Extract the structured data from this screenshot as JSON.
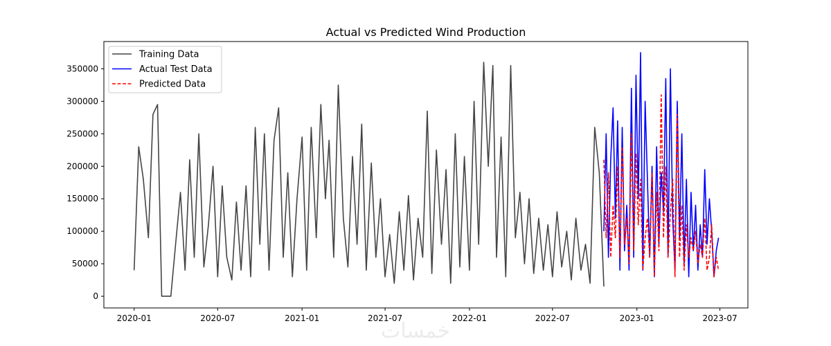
{
  "chart_data": {
    "type": "line",
    "title": "Actual vs Predicted Wind Production",
    "xlabel": "",
    "ylabel": "",
    "xlim": [
      "2019-10-27",
      "2023-08-31"
    ],
    "ylim": [
      -18000,
      392000
    ],
    "x_ticks": [
      "2020-01",
      "2020-07",
      "2021-01",
      "2021-07",
      "2022-01",
      "2022-07",
      "2023-01",
      "2023-07"
    ],
    "y_ticks": [
      0,
      50000,
      100000,
      150000,
      200000,
      250000,
      300000,
      350000
    ],
    "grid": false,
    "legend_position": "top-left",
    "series": [
      {
        "name": "Training Data",
        "color": "#444444",
        "style": "solid",
        "x": [
          "2020-01-01",
          "2020-01-11",
          "2020-01-21",
          "2020-02-01",
          "2020-02-11",
          "2020-02-21",
          "2020-03-01",
          "2020-03-11",
          "2020-03-21",
          "2020-04-01",
          "2020-04-11",
          "2020-04-21",
          "2020-05-01",
          "2020-05-11",
          "2020-05-21",
          "2020-06-01",
          "2020-06-11",
          "2020-06-21",
          "2020-07-01",
          "2020-07-11",
          "2020-07-21",
          "2020-08-01",
          "2020-08-11",
          "2020-08-21",
          "2020-09-01",
          "2020-09-11",
          "2020-09-21",
          "2020-10-01",
          "2020-10-11",
          "2020-10-21",
          "2020-11-01",
          "2020-11-11",
          "2020-11-21",
          "2020-12-01",
          "2020-12-11",
          "2020-12-21",
          "2021-01-01",
          "2021-01-11",
          "2021-01-21",
          "2021-02-01",
          "2021-02-11",
          "2021-02-21",
          "2021-03-01",
          "2021-03-11",
          "2021-03-21",
          "2021-04-01",
          "2021-04-11",
          "2021-04-21",
          "2021-05-01",
          "2021-05-11",
          "2021-05-21",
          "2021-06-01",
          "2021-06-11",
          "2021-06-21",
          "2021-07-01",
          "2021-07-11",
          "2021-07-21",
          "2021-08-01",
          "2021-08-11",
          "2021-08-21",
          "2021-09-01",
          "2021-09-11",
          "2021-09-21",
          "2021-10-01",
          "2021-10-11",
          "2021-10-21",
          "2021-11-01",
          "2021-11-11",
          "2021-11-21",
          "2021-12-01",
          "2021-12-11",
          "2021-12-21",
          "2022-01-01",
          "2022-01-11",
          "2022-01-21",
          "2022-02-01",
          "2022-02-11",
          "2022-02-21",
          "2022-03-01",
          "2022-03-11",
          "2022-03-21",
          "2022-04-01",
          "2022-04-11",
          "2022-04-21",
          "2022-05-01",
          "2022-05-11",
          "2022-05-21",
          "2022-06-01",
          "2022-06-11",
          "2022-06-21",
          "2022-07-01",
          "2022-07-11",
          "2022-07-21",
          "2022-08-01",
          "2022-08-11",
          "2022-08-21",
          "2022-09-01",
          "2022-09-11",
          "2022-09-21",
          "2022-10-01",
          "2022-10-11",
          "2022-10-21"
        ],
        "values": [
          40000,
          230000,
          180000,
          90000,
          280000,
          295000,
          0,
          0,
          0,
          85000,
          160000,
          40000,
          210000,
          60000,
          250000,
          45000,
          110000,
          200000,
          30000,
          170000,
          60000,
          25000,
          145000,
          40000,
          170000,
          30000,
          260000,
          80000,
          250000,
          40000,
          240000,
          290000,
          60000,
          190000,
          30000,
          150000,
          245000,
          40000,
          260000,
          90000,
          295000,
          150000,
          240000,
          60000,
          325000,
          120000,
          45000,
          215000,
          80000,
          265000,
          40000,
          205000,
          60000,
          150000,
          30000,
          95000,
          20000,
          130000,
          40000,
          155000,
          25000,
          120000,
          60000,
          285000,
          35000,
          225000,
          80000,
          195000,
          20000,
          250000,
          45000,
          215000,
          40000,
          300000,
          80000,
          360000,
          200000,
          355000,
          60000,
          245000,
          30000,
          355000,
          90000,
          160000,
          50000,
          150000,
          35000,
          120000,
          40000,
          110000,
          30000,
          130000,
          45000,
          100000,
          25000,
          120000,
          40000,
          80000,
          20000,
          260000,
          190000,
          15000
        ]
      },
      {
        "name": "Actual Test Data",
        "color": "#0000ff",
        "style": "solid",
        "x": [
          "2022-10-21",
          "2022-10-26",
          "2022-10-31",
          "2022-11-05",
          "2022-11-10",
          "2022-11-15",
          "2022-11-20",
          "2022-11-25",
          "2022-11-30",
          "2022-12-05",
          "2022-12-10",
          "2022-12-15",
          "2022-12-20",
          "2022-12-25",
          "2022-12-30",
          "2023-01-04",
          "2023-01-09",
          "2023-01-14",
          "2023-01-19",
          "2023-01-24",
          "2023-01-29",
          "2023-02-03",
          "2023-02-08",
          "2023-02-13",
          "2023-02-18",
          "2023-02-23",
          "2023-02-28",
          "2023-03-05",
          "2023-03-10",
          "2023-03-15",
          "2023-03-20",
          "2023-03-25",
          "2023-03-30",
          "2023-04-04",
          "2023-04-09",
          "2023-04-14",
          "2023-04-19",
          "2023-04-24",
          "2023-04-29",
          "2023-05-04",
          "2023-05-09",
          "2023-05-14",
          "2023-05-19",
          "2023-05-24",
          "2023-05-29",
          "2023-06-03",
          "2023-06-08",
          "2023-06-13",
          "2023-06-18",
          "2023-06-23",
          "2023-06-28"
        ],
        "values": [
          100000,
          250000,
          60000,
          210000,
          290000,
          120000,
          270000,
          40000,
          260000,
          70000,
          140000,
          40000,
          320000,
          60000,
          340000,
          150000,
          375000,
          40000,
          300000,
          180000,
          60000,
          200000,
          30000,
          230000,
          80000,
          190000,
          130000,
          335000,
          60000,
          350000,
          120000,
          40000,
          300000,
          90000,
          250000,
          50000,
          180000,
          30000,
          160000,
          70000,
          140000,
          40000,
          110000,
          60000,
          195000,
          80000,
          150000,
          100000,
          30000,
          70000,
          90000
        ]
      },
      {
        "name": "Predicted Data",
        "color": "#ff0000",
        "style": "dashed",
        "x": [
          "2022-10-21",
          "2022-10-26",
          "2022-10-31",
          "2022-11-05",
          "2022-11-10",
          "2022-11-15",
          "2022-11-20",
          "2022-11-25",
          "2022-11-30",
          "2022-12-05",
          "2022-12-10",
          "2022-12-15",
          "2022-12-20",
          "2022-12-25",
          "2022-12-30",
          "2023-01-04",
          "2023-01-09",
          "2023-01-14",
          "2023-01-19",
          "2023-01-24",
          "2023-01-29",
          "2023-02-03",
          "2023-02-08",
          "2023-02-13",
          "2023-02-18",
          "2023-02-23",
          "2023-02-28",
          "2023-03-05",
          "2023-03-10",
          "2023-03-15",
          "2023-03-20",
          "2023-03-25",
          "2023-03-30",
          "2023-04-04",
          "2023-04-09",
          "2023-04-14",
          "2023-04-19",
          "2023-04-24",
          "2023-04-29",
          "2023-05-04",
          "2023-05-09",
          "2023-05-14",
          "2023-05-19",
          "2023-05-24",
          "2023-05-29",
          "2023-06-03",
          "2023-06-08",
          "2023-06-13",
          "2023-06-18",
          "2023-06-23",
          "2023-06-28"
        ],
        "values": [
          210000,
          90000,
          190000,
          60000,
          140000,
          90000,
          200000,
          60000,
          230000,
          80000,
          120000,
          50000,
          250000,
          70000,
          220000,
          110000,
          180000,
          40000,
          90000,
          120000,
          60000,
          190000,
          30000,
          160000,
          70000,
          310000,
          90000,
          200000,
          60000,
          130000,
          180000,
          30000,
          280000,
          60000,
          140000,
          40000,
          110000,
          60000,
          90000,
          70000,
          100000,
          50000,
          80000,
          60000,
          120000,
          40000,
          60000,
          110000,
          30000,
          60000,
          40000
        ]
      }
    ]
  },
  "watermark": "خمسات"
}
